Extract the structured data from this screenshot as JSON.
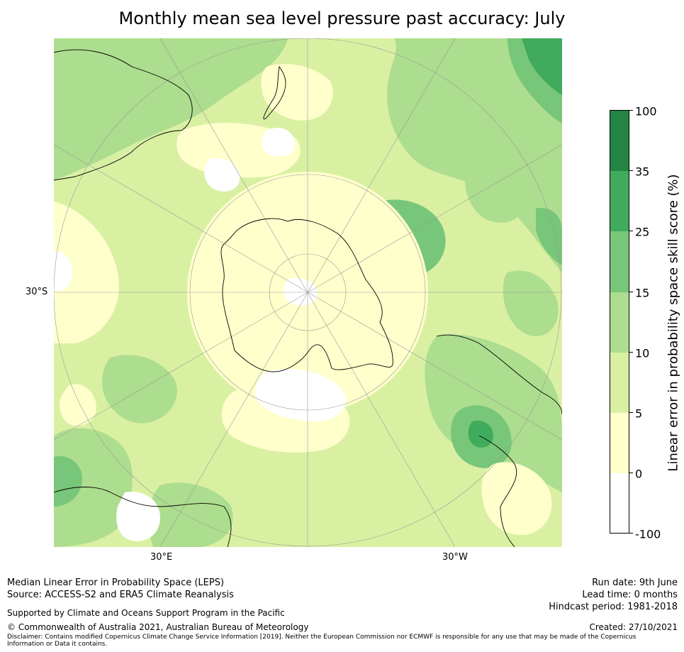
{
  "title": "Monthly mean sea level pressure past accuracy: July",
  "map": {
    "lat_label": "30°S",
    "lon_labels": [
      "30°E",
      "30°W"
    ],
    "projection": "south polar stereographic",
    "colors": {
      "land_outline": "#000000",
      "graticule": "#9a9a9a",
      "class_neg": "#ffffff",
      "class_0_5": "#ffffcc",
      "class_5_10": "#d9f0a3",
      "class_10_15": "#addd8e",
      "class_15_25": "#78c679",
      "class_25_35": "#41ab5d",
      "class_35_100": "#238443"
    }
  },
  "colorbar": {
    "title": "Linear error in probability space skill score (%)",
    "ticks": [
      "100",
      "35",
      "25",
      "15",
      "10",
      "5",
      "0",
      "-100"
    ],
    "colors": [
      "#238443",
      "#41ab5d",
      "#78c679",
      "#addd8e",
      "#d9f0a3",
      "#ffffcc",
      "#ffffff"
    ]
  },
  "footer": {
    "line1": "Median Linear Error in Probability Space (LEPS)",
    "line2": "Source: ACCESS-S2 and ERA5 Climate Reanalysis",
    "support": "Supported by Climate and Oceans Support Program in the Pacific",
    "copyright": "© Commonwealth of Australia 2021, Australian Bureau of Meteorology",
    "disclaimer": "Disclaimer: Contains modified Copernicus Climate Change Service Information [2019]. Neither the European Commission nor ECMWF is responsible for any use that may be made of the Copernicus Information or Data it contains.",
    "run_date": "Run date: 9th June",
    "lead_time": "Lead time: 0 months",
    "hindcast": "Hindcast period: 1981-2018",
    "created": "Created: 27/10/2021"
  }
}
